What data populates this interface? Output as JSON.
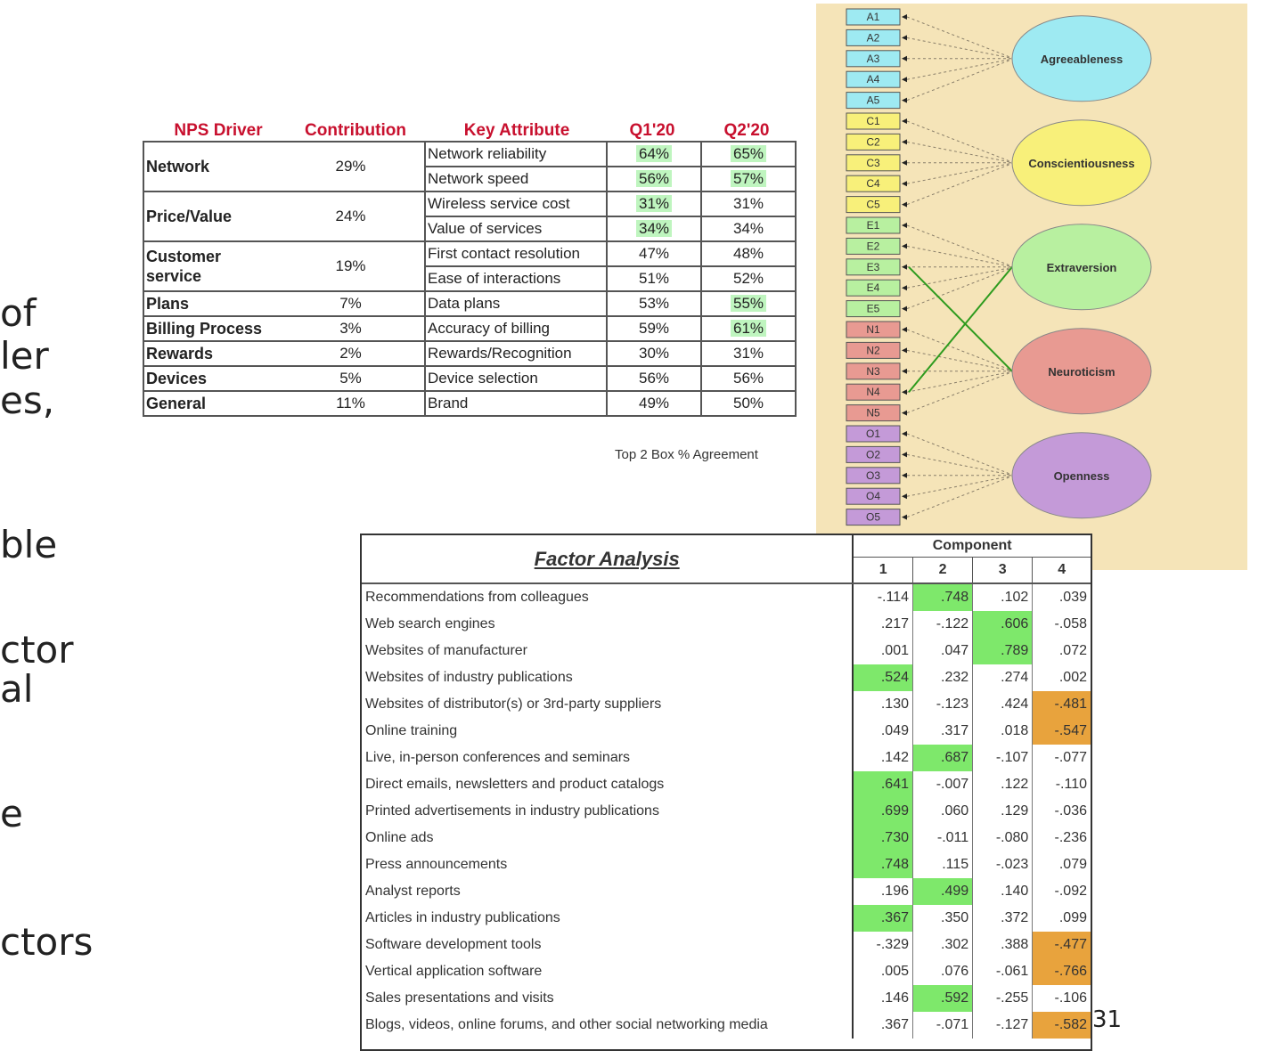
{
  "left_text": [
    "of",
    "ler",
    "es,",
    "ble",
    "ctor",
    "al",
    "e",
    "ctors"
  ],
  "nps": {
    "headers": [
      "NPS Driver",
      "Contribution",
      "Key Attribute",
      "Q1'20",
      "Q2'20"
    ],
    "groups": [
      {
        "driver": "Network",
        "contribution": "29%",
        "rows": [
          {
            "attribute": "Network reliability",
            "q1": "64%",
            "q2": "65%",
            "q1_hl": true,
            "q2_hl": true
          },
          {
            "attribute": "Network speed",
            "q1": "56%",
            "q2": "57%",
            "q1_hl": true,
            "q2_hl": true
          }
        ]
      },
      {
        "driver": "Price/Value",
        "contribution": "24%",
        "rows": [
          {
            "attribute": "Wireless service cost",
            "q1": "31%",
            "q2": "31%",
            "q1_hl": true,
            "q2_hl": false
          },
          {
            "attribute": "Value of services",
            "q1": "34%",
            "q2": "34%",
            "q1_hl": true,
            "q2_hl": false
          }
        ]
      },
      {
        "driver": "Customer service",
        "contribution": "19%",
        "rows": [
          {
            "attribute": "First contact resolution",
            "q1": "47%",
            "q2": "48%",
            "q1_hl": false,
            "q2_hl": false
          },
          {
            "attribute": "Ease of interactions",
            "q1": "51%",
            "q2": "52%",
            "q1_hl": false,
            "q2_hl": false
          }
        ]
      },
      {
        "driver": "Plans",
        "contribution": "7%",
        "rows": [
          {
            "attribute": "Data plans",
            "q1": "53%",
            "q2": "55%",
            "q1_hl": false,
            "q2_hl": true
          }
        ]
      },
      {
        "driver": "Billing Process",
        "contribution": "3%",
        "rows": [
          {
            "attribute": "Accuracy of billing",
            "q1": "59%",
            "q2": "61%",
            "q1_hl": false,
            "q2_hl": true
          }
        ]
      },
      {
        "driver": "Rewards",
        "contribution": "2%",
        "rows": [
          {
            "attribute": "Rewards/Recognition",
            "q1": "30%",
            "q2": "31%",
            "q1_hl": false,
            "q2_hl": false
          }
        ]
      },
      {
        "driver": "Devices",
        "contribution": "5%",
        "rows": [
          {
            "attribute": "Device selection",
            "q1": "56%",
            "q2": "56%",
            "q1_hl": false,
            "q2_hl": false
          }
        ]
      },
      {
        "driver": "General",
        "contribution": "11%",
        "rows": [
          {
            "attribute": "Brand",
            "q1": "49%",
            "q2": "50%",
            "q1_hl": false,
            "q2_hl": false
          }
        ]
      }
    ],
    "note": "Top 2 Box % Agreement"
  },
  "bigfive": {
    "colors": {
      "A": "#9eeaf2",
      "C": "#f8f07a",
      "E": "#b8f0a0",
      "N": "#e89a92",
      "O": "#c49ad8"
    },
    "items": [
      "A1",
      "A2",
      "A3",
      "A4",
      "A5",
      "C1",
      "C2",
      "C3",
      "C4",
      "C5",
      "E1",
      "E2",
      "E3",
      "E4",
      "E5",
      "N1",
      "N2",
      "N3",
      "N4",
      "N5",
      "O1",
      "O2",
      "O3",
      "O4",
      "O5"
    ],
    "factors": [
      {
        "key": "A",
        "name": "Agreeableness"
      },
      {
        "key": "C",
        "name": "Conscientiousness"
      },
      {
        "key": "E",
        "name": "Extraversion"
      },
      {
        "key": "N",
        "name": "Neuroticism"
      },
      {
        "key": "O",
        "name": "Openness"
      }
    ],
    "cross_links": [
      {
        "factor": "E",
        "item": "N4"
      },
      {
        "factor": "N",
        "item": "E3"
      }
    ]
  },
  "factor_analysis": {
    "title": "Factor Analysis",
    "component_header": "Component",
    "components": [
      "1",
      "2",
      "3",
      "4"
    ],
    "rows": [
      {
        "label": "Recommendations from colleagues",
        "values": [
          "-.114",
          ".748",
          ".102",
          ".039"
        ],
        "hl": [
          "",
          "g",
          "",
          ""
        ]
      },
      {
        "label": "Web search engines",
        "values": [
          ".217",
          "-.122",
          ".606",
          "-.058"
        ],
        "hl": [
          "",
          "",
          "g",
          ""
        ]
      },
      {
        "label": "Websites of manufacturer",
        "values": [
          ".001",
          ".047",
          ".789",
          ".072"
        ],
        "hl": [
          "",
          "",
          "g",
          ""
        ]
      },
      {
        "label": "Websites of industry publications",
        "values": [
          ".524",
          ".232",
          ".274",
          ".002"
        ],
        "hl": [
          "g",
          "",
          "",
          ""
        ]
      },
      {
        "label": "Websites of distributor(s) or 3rd-party suppliers",
        "values": [
          ".130",
          "-.123",
          ".424",
          "-.481"
        ],
        "hl": [
          "",
          "",
          "",
          "o"
        ]
      },
      {
        "label": "Online training",
        "values": [
          ".049",
          ".317",
          ".018",
          "-.547"
        ],
        "hl": [
          "",
          "",
          "",
          "o"
        ]
      },
      {
        "label": "Live, in-person  conferences and seminars",
        "values": [
          ".142",
          ".687",
          "-.107",
          "-.077"
        ],
        "hl": [
          "",
          "g",
          "",
          ""
        ]
      },
      {
        "label": " Direct emails, newsletters and product catalogs",
        "values": [
          ".641",
          "-.007",
          ".122",
          "-.110"
        ],
        "hl": [
          "g",
          "",
          "",
          ""
        ]
      },
      {
        "label": "Printed advertisements in industry publications",
        "values": [
          ".699",
          ".060",
          ".129",
          "-.036"
        ],
        "hl": [
          "g",
          "",
          "",
          ""
        ]
      },
      {
        "label": "Online ads",
        "values": [
          ".730",
          "-.011",
          "-.080",
          "-.236"
        ],
        "hl": [
          "g",
          "",
          "",
          ""
        ]
      },
      {
        "label": "Press announcements",
        "values": [
          ".748",
          ".115",
          "-.023",
          ".079"
        ],
        "hl": [
          "g",
          "",
          "",
          ""
        ]
      },
      {
        "label": "Analyst reports",
        "values": [
          ".196",
          ".499",
          ".140",
          "-.092"
        ],
        "hl": [
          "",
          "g",
          "",
          ""
        ]
      },
      {
        "label": "Articles in industry publications",
        "values": [
          ".367",
          ".350",
          ".372",
          ".099"
        ],
        "hl": [
          "g",
          "",
          "",
          ""
        ]
      },
      {
        "label": "Software development tools",
        "values": [
          "-.329",
          ".302",
          ".388",
          "-.477"
        ],
        "hl": [
          "",
          "",
          "",
          "o"
        ]
      },
      {
        "label": "Vertical application software",
        "values": [
          ".005",
          ".076",
          "-.061",
          "-.766"
        ],
        "hl": [
          "",
          "",
          "",
          "o"
        ]
      },
      {
        "label": "Sales presentations and visits",
        "values": [
          ".146",
          ".592",
          "-.255",
          "-.106"
        ],
        "hl": [
          "",
          "g",
          "",
          ""
        ]
      },
      {
        "label": "Blogs, videos, online forums, and other social networking media",
        "values": [
          ".367",
          "-.071",
          "-.127",
          "-.582"
        ],
        "hl": [
          "",
          "",
          "",
          "o"
        ]
      }
    ]
  },
  "page_number": "31"
}
